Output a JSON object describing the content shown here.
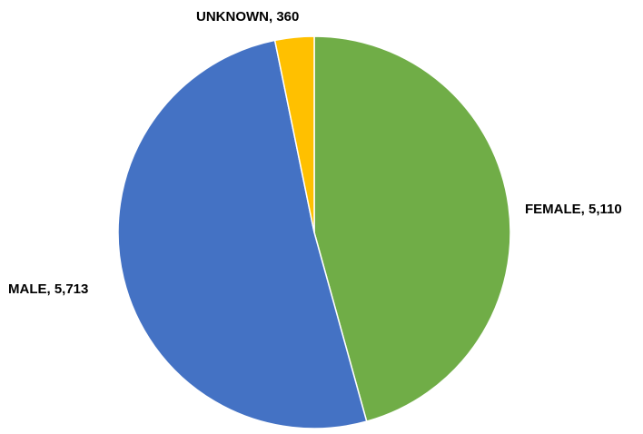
{
  "chart_data": {
    "type": "pie",
    "title": "",
    "start_angle_deg": 0,
    "direction": "clockwise",
    "slices": [
      {
        "label": "FEMALE",
        "value": 5110,
        "display": "FEMALE, 5,110",
        "color": "#70AD47"
      },
      {
        "label": "MALE",
        "value": 5713,
        "display": "MALE, 5,713",
        "color": "#4472C4"
      },
      {
        "label": "UNKNOWN",
        "value": 360,
        "display": "UNKNOWN, 360",
        "color": "#FFC000"
      }
    ],
    "legend": "none",
    "data_labels": "outside"
  }
}
